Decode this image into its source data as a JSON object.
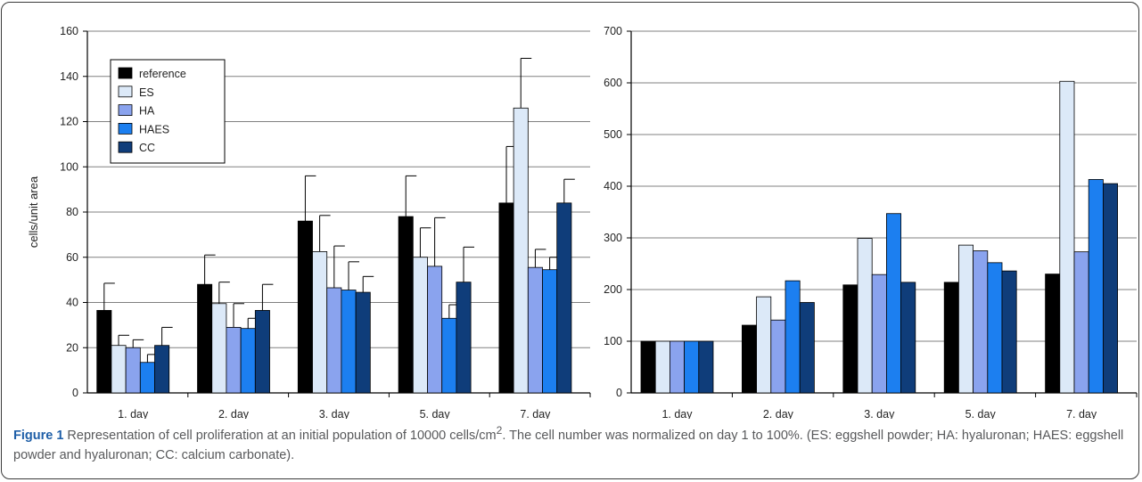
{
  "caption": {
    "label": "Figure 1",
    "text_before_sup": " Representation of cell proliferation at an initial population of 10000 cells/cm",
    "sup": "2",
    "text_after_sup": ". The cell number was normalized on day 1 to 100%. (ES: eggshell powder; HA: hyaluronan; HAES: eggshell powder and hyaluronan; CC: calcium carbonate)."
  },
  "colors": {
    "reference": "#000000",
    "ES": "#dce9f8",
    "HA": "#8aa3ee",
    "HAES": "#1c7ff0",
    "CC": "#0f3d7a",
    "gridline": "#808080"
  },
  "chart_data": [
    {
      "type": "bar",
      "categories": [
        "1. day",
        "2. day",
        "3. day",
        "5. day",
        "7. day"
      ],
      "xlabel": "",
      "ylabel": "cells/unit area",
      "ylim": [
        0,
        160
      ],
      "yticks": [
        0,
        20,
        40,
        60,
        80,
        100,
        120,
        140,
        160
      ],
      "grid": true,
      "legend_position": "top-left",
      "error_bars": true,
      "series": [
        {
          "name": "reference",
          "values": [
            36.5,
            48,
            76,
            78,
            84
          ],
          "errors": [
            12,
            13,
            20,
            18,
            25
          ]
        },
        {
          "name": "ES",
          "values": [
            21,
            39.5,
            62.5,
            60,
            126
          ],
          "errors": [
            4.5,
            9.5,
            16,
            13,
            22
          ]
        },
        {
          "name": "HA",
          "values": [
            20,
            29,
            46.5,
            56,
            55.5
          ],
          "errors": [
            3.5,
            10.5,
            18.5,
            21.5,
            8
          ]
        },
        {
          "name": "HAES",
          "values": [
            13.5,
            28.5,
            45.5,
            33,
            54.5
          ],
          "errors": [
            3.5,
            4.5,
            12.5,
            6,
            5.5
          ]
        },
        {
          "name": "CC",
          "values": [
            21,
            36.5,
            44.5,
            49,
            84
          ],
          "errors": [
            8,
            11.5,
            7,
            15.5,
            10.5
          ]
        }
      ]
    },
    {
      "type": "bar",
      "categories": [
        "1. day",
        "2. day",
        "3. day",
        "5. day",
        "7. day"
      ],
      "xlabel": "",
      "ylabel": "",
      "ylim": [
        0,
        700
      ],
      "yticks": [
        0,
        100,
        200,
        300,
        400,
        500,
        600,
        700
      ],
      "grid": true,
      "series": [
        {
          "name": "reference",
          "values": [
            100,
            131,
            209,
            214,
            230
          ]
        },
        {
          "name": "ES",
          "values": [
            100,
            186,
            299,
            286,
            603
          ]
        },
        {
          "name": "HA",
          "values": [
            100,
            141,
            229,
            275,
            273
          ]
        },
        {
          "name": "HAES",
          "values": [
            100,
            217,
            347,
            252,
            413
          ]
        },
        {
          "name": "CC",
          "values": [
            100,
            175,
            214,
            236,
            405
          ]
        }
      ]
    }
  ]
}
